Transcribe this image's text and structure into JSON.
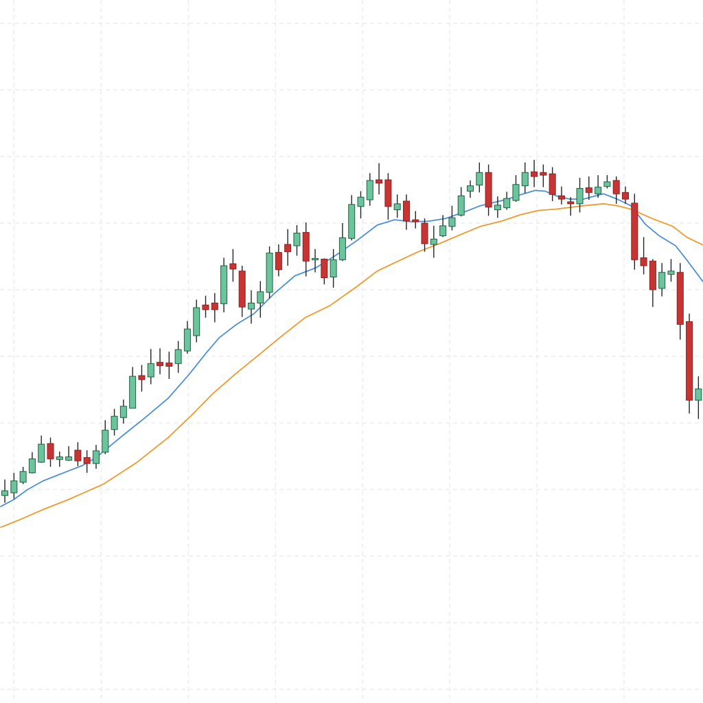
{
  "chart_data": {
    "type": "candlestick",
    "title": "",
    "xlabel": "",
    "ylabel": "",
    "xlim": [
      -0.53,
      76.5
    ],
    "ylim": [
      -2.06,
      103.5
    ],
    "grid": true,
    "y_grid_values": [
      0,
      10,
      20,
      30,
      40,
      50,
      60,
      70,
      80,
      90,
      100
    ],
    "x_grid_values": [
      1,
      10.55,
      20.1,
      29.65,
      39.2,
      48.75,
      58.3,
      67.85
    ],
    "colors": {
      "up": "#6cc49c",
      "up_edge": "#1f5e42",
      "down": "#c63434",
      "down_edge": "#8e1f1f",
      "wick": "#222222",
      "ma_short": "#4a8fd6",
      "ma_long": "#f0982a",
      "grid": "#e3e3e3"
    },
    "candles_ohlc": [
      [
        29.1,
        31.5,
        28.0,
        29.8
      ],
      [
        29.5,
        32.5,
        28.6,
        31.3
      ],
      [
        31.1,
        33.4,
        30.8,
        32.7
      ],
      [
        32.5,
        35.6,
        32.4,
        34.6
      ],
      [
        34.1,
        38.1,
        34.0,
        36.8
      ],
      [
        36.9,
        37.8,
        33.4,
        34.6
      ],
      [
        34.5,
        35.7,
        33.4,
        34.9
      ],
      [
        34.4,
        36.5,
        34.3,
        34.9
      ],
      [
        35.9,
        37.1,
        33.5,
        34.3
      ],
      [
        34.8,
        35.9,
        32.5,
        33.9
      ],
      [
        33.9,
        36.7,
        33.1,
        35.8
      ],
      [
        35.6,
        40.4,
        35.3,
        38.9
      ],
      [
        39.0,
        42.1,
        38.1,
        41.0
      ],
      [
        40.8,
        43.5,
        39.9,
        42.5
      ],
      [
        42.2,
        48.4,
        42.2,
        47.0
      ],
      [
        47.1,
        48.7,
        44.7,
        46.5
      ],
      [
        46.9,
        51.1,
        45.8,
        48.9
      ],
      [
        49.1,
        51.2,
        47.3,
        48.6
      ],
      [
        49.0,
        50.7,
        46.6,
        48.5
      ],
      [
        48.9,
        52.3,
        47.5,
        51.0
      ],
      [
        50.8,
        55.3,
        50.4,
        54.1
      ],
      [
        53.1,
        58.5,
        52.1,
        57.3
      ],
      [
        57.7,
        59.1,
        55.8,
        57.0
      ],
      [
        58.0,
        59.5,
        55.1,
        57.0
      ],
      [
        57.9,
        64.8,
        56.6,
        63.6
      ],
      [
        63.9,
        66.1,
        61.2,
        63.1
      ],
      [
        62.8,
        63.6,
        55.9,
        57.4
      ],
      [
        57.1,
        59.9,
        54.9,
        58.0
      ],
      [
        58.0,
        61.3,
        55.8,
        59.7
      ],
      [
        59.6,
        66.5,
        58.7,
        65.5
      ],
      [
        65.6,
        66.8,
        62.0,
        63.0
      ],
      [
        66.8,
        69.1,
        63.6,
        65.7
      ],
      [
        66.6,
        69.7,
        65.1,
        68.5
      ],
      [
        68.6,
        70.1,
        62.0,
        64.3
      ],
      [
        64.5,
        66.1,
        62.6,
        64.7
      ],
      [
        64.6,
        64.7,
        60.8,
        61.8
      ],
      [
        61.9,
        66.1,
        60.3,
        64.5
      ],
      [
        64.5,
        70.0,
        64.3,
        67.8
      ],
      [
        67.7,
        74.2,
        67.4,
        72.8
      ],
      [
        72.5,
        74.8,
        70.7,
        73.9
      ],
      [
        73.5,
        77.5,
        72.6,
        76.4
      ],
      [
        76.5,
        79.0,
        74.3,
        76.0
      ],
      [
        76.5,
        77.5,
        70.5,
        72.5
      ],
      [
        72.0,
        74.3,
        70.8,
        72.9
      ],
      [
        73.3,
        74.3,
        69.0,
        70.3
      ],
      [
        70.5,
        71.8,
        69.2,
        70.2
      ],
      [
        70.0,
        70.7,
        65.7,
        66.9
      ],
      [
        66.8,
        69.6,
        64.8,
        67.6
      ],
      [
        68.1,
        71.2,
        67.9,
        69.6
      ],
      [
        69.5,
        72.6,
        68.9,
        70.8
      ],
      [
        71.2,
        75.4,
        71.0,
        74.1
      ],
      [
        74.8,
        76.4,
        73.8,
        75.6
      ],
      [
        75.7,
        79.1,
        74.6,
        77.6
      ],
      [
        77.6,
        78.8,
        71.1,
        72.4
      ],
      [
        72.0,
        74.0,
        70.8,
        72.7
      ],
      [
        72.3,
        74.7,
        72.0,
        73.7
      ],
      [
        73.4,
        77.2,
        73.2,
        75.8
      ],
      [
        75.6,
        79.1,
        74.5,
        77.6
      ],
      [
        77.7,
        79.5,
        75.4,
        77.0
      ],
      [
        77.6,
        78.8,
        75.4,
        77.2
      ],
      [
        77.4,
        78.4,
        73.3,
        74.3
      ],
      [
        74.1,
        75.5,
        72.8,
        73.6
      ],
      [
        73.2,
        73.9,
        71.1,
        72.9
      ],
      [
        72.9,
        76.8,
        71.6,
        75.2
      ],
      [
        75.3,
        77.0,
        73.5,
        74.6
      ],
      [
        74.4,
        77.2,
        73.8,
        75.4
      ],
      [
        75.5,
        77.2,
        75.2,
        76.2
      ],
      [
        76.4,
        77.0,
        72.9,
        74.4
      ],
      [
        74.6,
        75.5,
        72.9,
        73.6
      ],
      [
        73.0,
        74.4,
        63.0,
        64.5
      ],
      [
        64.8,
        67.9,
        62.3,
        63.6
      ],
      [
        64.3,
        64.6,
        57.4,
        60.0
      ],
      [
        60.2,
        64.0,
        59.0,
        62.6
      ],
      [
        62.3,
        64.6,
        61.2,
        62.8
      ],
      [
        62.6,
        64.0,
        52.5,
        54.8
      ],
      [
        55.2,
        56.4,
        41.4,
        43.4
      ],
      [
        43.4,
        47.0,
        40.6,
        45.1
      ]
    ],
    "moving_averages": [
      {
        "line": "short",
        "color": "#4a8fd6",
        "points": [
          [
            -0.5,
            27.4
          ],
          [
            1.0,
            28.5
          ],
          [
            2.5,
            30.0
          ],
          [
            4.2,
            31.3
          ],
          [
            7.0,
            32.8
          ],
          [
            8.5,
            33.6
          ],
          [
            10.0,
            34.8
          ],
          [
            11.5,
            36.5
          ],
          [
            13.0,
            38.2
          ],
          [
            15.3,
            40.7
          ],
          [
            17.9,
            43.7
          ],
          [
            20.2,
            47.3
          ],
          [
            22.0,
            50.4
          ],
          [
            23.5,
            52.8
          ],
          [
            25.4,
            54.8
          ],
          [
            27.3,
            56.4
          ],
          [
            29.5,
            59.4
          ],
          [
            31.8,
            62.1
          ],
          [
            34.1,
            63.3
          ],
          [
            36.3,
            65.2
          ],
          [
            38.6,
            67.4
          ],
          [
            40.8,
            69.7
          ],
          [
            42.7,
            70.5
          ],
          [
            44.6,
            70.2
          ],
          [
            46.5,
            70.3
          ],
          [
            48.3,
            70.7
          ],
          [
            50.6,
            71.8
          ],
          [
            52.1,
            72.6
          ],
          [
            53.6,
            73.1
          ],
          [
            55.1,
            73.6
          ],
          [
            56.6,
            74.3
          ],
          [
            58.1,
            74.9
          ],
          [
            59.2,
            74.8
          ],
          [
            60.4,
            74.1
          ],
          [
            61.9,
            73.6
          ],
          [
            63.4,
            73.6
          ],
          [
            65.6,
            74.4
          ],
          [
            67.1,
            73.6
          ],
          [
            68.6,
            72.6
          ],
          [
            70.2,
            69.8
          ],
          [
            71.7,
            68.1
          ],
          [
            73.5,
            66.6
          ],
          [
            74.7,
            64.5
          ],
          [
            76.5,
            61.2
          ]
        ]
      },
      {
        "line": "long",
        "color": "#f0982a",
        "points": [
          [
            -0.5,
            24.3
          ],
          [
            1.7,
            25.5
          ],
          [
            4.2,
            27.0
          ],
          [
            7.0,
            28.5
          ],
          [
            10.8,
            30.8
          ],
          [
            14.5,
            34.1
          ],
          [
            17.9,
            37.8
          ],
          [
            20.5,
            41.2
          ],
          [
            22.8,
            44.4
          ],
          [
            25.4,
            47.5
          ],
          [
            28.0,
            50.4
          ],
          [
            30.3,
            53.0
          ],
          [
            32.9,
            55.8
          ],
          [
            35.6,
            57.6
          ],
          [
            38.6,
            60.5
          ],
          [
            40.8,
            62.8
          ],
          [
            43.1,
            64.3
          ],
          [
            45.3,
            65.7
          ],
          [
            47.6,
            66.9
          ],
          [
            49.8,
            68.2
          ],
          [
            52.1,
            69.5
          ],
          [
            54.4,
            70.3
          ],
          [
            56.6,
            71.3
          ],
          [
            58.5,
            71.9
          ],
          [
            60.4,
            72.1
          ],
          [
            63.4,
            72.6
          ],
          [
            65.6,
            72.9
          ],
          [
            67.1,
            72.6
          ],
          [
            68.6,
            72.1
          ],
          [
            70.9,
            70.7
          ],
          [
            73.2,
            69.5
          ],
          [
            74.7,
            67.9
          ],
          [
            76.5,
            66.7
          ]
        ]
      }
    ]
  }
}
